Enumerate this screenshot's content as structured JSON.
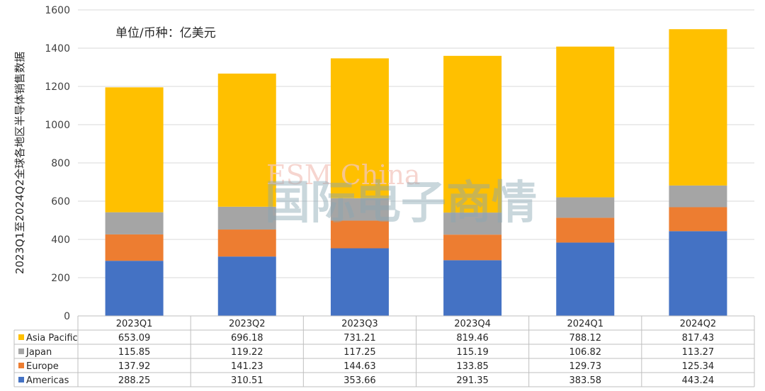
{
  "chart_data": {
    "type": "bar",
    "stacked": true,
    "title": "",
    "unit_note": "单位/币种：亿美元",
    "ylabel": "2023Q1至2024Q2全球各地区半导体销售数据",
    "xlabel": "",
    "ylim": [
      0,
      1600
    ],
    "yticks": [
      0,
      200,
      400,
      600,
      800,
      1000,
      1200,
      1400,
      1600
    ],
    "grid": true,
    "legend": "data-table-left",
    "categories": [
      "2023Q1",
      "2023Q2",
      "2023Q3",
      "2023Q4",
      "2024Q1",
      "2024Q2"
    ],
    "series": [
      {
        "name": "Americas",
        "color": "#4472c4",
        "values": [
          288.25,
          310.51,
          353.66,
          291.35,
          383.58,
          443.24
        ]
      },
      {
        "name": "Europe",
        "color": "#ed7d31",
        "values": [
          137.92,
          141.23,
          144.63,
          133.85,
          129.73,
          125.34
        ]
      },
      {
        "name": "Japan",
        "color": "#a5a5a5",
        "values": [
          115.85,
          119.22,
          117.25,
          115.19,
          106.82,
          113.27
        ]
      },
      {
        "name": "Asia Pacific",
        "color": "#ffc000",
        "values": [
          653.09,
          696.18,
          731.21,
          819.46,
          788.12,
          817.43
        ]
      }
    ],
    "table_rows": [
      {
        "name": "Asia Pacific",
        "color": "#ffc000",
        "values": [
          "653.09",
          "696.18",
          "731.21",
          "819.46",
          "788.12",
          "817.43"
        ]
      },
      {
        "name": "Japan",
        "color": "#a5a5a5",
        "values": [
          "115.85",
          "119.22",
          "117.25",
          "115.19",
          "106.82",
          "113.27"
        ]
      },
      {
        "name": "Europe",
        "color": "#ed7d31",
        "values": [
          "137.92",
          "141.23",
          "144.63",
          "133.85",
          "129.73",
          "125.34"
        ]
      },
      {
        "name": "Americas",
        "color": "#4472c4",
        "values": [
          "288.25",
          "310.51",
          "353.66",
          "291.35",
          "383.58",
          "443.24"
        ]
      }
    ]
  },
  "watermark": {
    "line1": "ESM China",
    "line2": "国际电子商情"
  }
}
